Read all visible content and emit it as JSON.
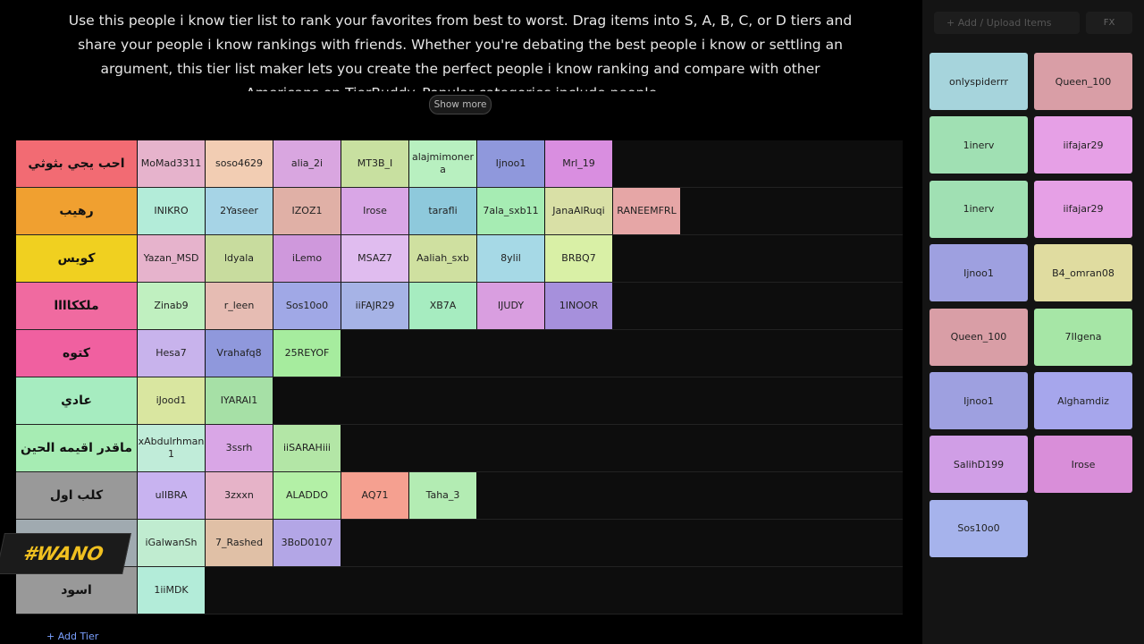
{
  "description": "Use this people i know tier list to rank your favorites from best to worst. Drag items into S, A, B, C, or D tiers and share your people i know rankings with friends. Whether you're debating the best people i know or settling an argument, this tier list maker lets you create the perfect people i know ranking and compare with other Americans on TierBuddy. Popular categories include people,...",
  "show_more": "Show more",
  "tiers": [
    {
      "label": "احب يجي بثوثي",
      "color": "#f26b73",
      "items": [
        {
          "name": "MoMad3311",
          "color": "#e6b3cc"
        },
        {
          "name": "soso4629",
          "color": "#f2cdb3"
        },
        {
          "name": "alia_2i",
          "color": "#d9a6e0"
        },
        {
          "name": "MT3B_I",
          "color": "#c8e0a0"
        },
        {
          "name": "alajmimonera",
          "color": "#b8f0c0"
        },
        {
          "name": "Ijnoo1",
          "color": "#8f98dc"
        },
        {
          "name": "Mrl_19",
          "color": "#d98ee0"
        }
      ]
    },
    {
      "label": "رهيب",
      "color": "#f0a030",
      "items": [
        {
          "name": "INIKRO",
          "color": "#b3ecd9"
        },
        {
          "name": "2Yaseer",
          "color": "#a6d4e6"
        },
        {
          "name": "IZOZ1",
          "color": "#e0b0a6"
        },
        {
          "name": "Irose",
          "color": "#d9a6e6"
        },
        {
          "name": "tarafli",
          "color": "#8ec9dc"
        },
        {
          "name": "7ala_sxb11",
          "color": "#a6ecb3"
        },
        {
          "name": "JanaAlRuqi",
          "color": "#d9e0a6"
        },
        {
          "name": "RANEEMFRL",
          "color": "#e6a6a6"
        }
      ]
    },
    {
      "label": "كويس",
      "color": "#f0d020",
      "items": [
        {
          "name": "Yazan_MSD",
          "color": "#e6b3cc"
        },
        {
          "name": "ldyala",
          "color": "#c8dc9e"
        },
        {
          "name": "iLemo",
          "color": "#cf98dc"
        },
        {
          "name": "MSAZ7",
          "color": "#e0bcef"
        },
        {
          "name": "Aaliah_sxb",
          "color": "#cfe0a0"
        },
        {
          "name": "8ylil",
          "color": "#a6d9e6"
        },
        {
          "name": "BRBQ7",
          "color": "#d9f0a6"
        }
      ]
    },
    {
      "label": "ملككاااا",
      "color": "#f06aa0",
      "items": [
        {
          "name": "Zinab9",
          "color": "#c0f0c0"
        },
        {
          "name": "r_leen",
          "color": "#e6bcb3"
        },
        {
          "name": "Sos10o0",
          "color": "#a0a8e6"
        },
        {
          "name": "iiFAJR29",
          "color": "#a6b3e6"
        },
        {
          "name": "XB7A",
          "color": "#a6ecc0"
        },
        {
          "name": "IJUDY",
          "color": "#d99ee0"
        },
        {
          "name": "1INOOR",
          "color": "#a690dc"
        }
      ]
    },
    {
      "label": "كتوه",
      "color": "#f060a0",
      "items": [
        {
          "name": "Hesa7",
          "color": "#c8b3ec"
        },
        {
          "name": "Vrahafq8",
          "color": "#8f98dc"
        },
        {
          "name": "25REYOF",
          "color": "#a6ec9e"
        }
      ]
    },
    {
      "label": "عادي",
      "color": "#a6ecc0",
      "items": [
        {
          "name": "iJood1",
          "color": "#d9e6a0"
        },
        {
          "name": "IYARAI1",
          "color": "#a6e0a6"
        }
      ]
    },
    {
      "label": "ماقدر اقيمه الحين",
      "color": "#a6ecb3",
      "items": [
        {
          "name": "xAbdulrhman1",
          "color": "#c0ecd9"
        },
        {
          "name": "3ssrh",
          "color": "#d9a6e6"
        },
        {
          "name": "iiSARAHiii",
          "color": "#b3e6a6"
        }
      ]
    },
    {
      "label": "كلب اول",
      "color": "#999999",
      "items": [
        {
          "name": "uIIBRA",
          "color": "#c8b3f0"
        },
        {
          "name": "3zxxn",
          "color": "#e6b3c8"
        },
        {
          "name": "ALADDO",
          "color": "#b3f0a6"
        },
        {
          "name": "AQ71",
          "color": "#f5a090"
        },
        {
          "name": "Taha_3",
          "color": "#b3ecb3"
        }
      ]
    },
    {
      "color": "#a0aab0",
      "items": [
        {
          "name": "iGalwanSh",
          "color": "#c0ecd0"
        },
        {
          "name": "7_Rashed",
          "color": "#e0c0a6"
        },
        {
          "name": "3BoD0107",
          "color": "#b3a6e6"
        }
      ]
    },
    {
      "label": "اسود",
      "color": "#999999",
      "items": [
        {
          "name": "1iiMDK",
          "color": "#b3ecd9"
        }
      ]
    }
  ],
  "watermark": "#WANO",
  "add_tier": "+ Add Tier",
  "sidebar": {
    "placeholder": "+ Add / Upload Items",
    "fx": "FX",
    "items": [
      {
        "name": "onlyspiderrr",
        "color": "#a6d4dc"
      },
      {
        "name": "Queen_100",
        "color": "#d99ea6"
      },
      {
        "name": "1inerv",
        "color": "#a0e0b3"
      },
      {
        "name": "iifajar29",
        "color": "#e6a0e6"
      },
      {
        "name": "1inerv",
        "color": "#a0e0b3"
      },
      {
        "name": "iifajar29",
        "color": "#e6a0e6"
      },
      {
        "name": "Ijnoo1",
        "color": "#9ea0e0"
      },
      {
        "name": "B4_omran08",
        "color": "#e0dca0"
      },
      {
        "name": "Queen_100",
        "color": "#d99ea6"
      },
      {
        "name": "7IIgena",
        "color": "#a6e6a6"
      },
      {
        "name": "Ijnoo1",
        "color": "#9ea0e0"
      },
      {
        "name": "Alghamdiz",
        "color": "#a6a6ec"
      },
      {
        "name": "SalihD199",
        "color": "#d09ee6"
      },
      {
        "name": "Irose",
        "color": "#d98ed9"
      },
      {
        "name": "Sos10o0",
        "color": "#a6b3ec"
      }
    ]
  }
}
